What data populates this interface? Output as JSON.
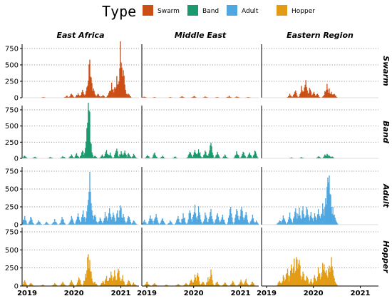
{
  "legend": {
    "title": "Type",
    "items": [
      {
        "label": "Swarm",
        "color": "#cc4e14"
      },
      {
        "label": "Band",
        "color": "#1a9a6c"
      },
      {
        "label": "Adult",
        "color": "#4ea7e0"
      },
      {
        "label": "Hopper",
        "color": "#e29b14"
      }
    ]
  },
  "chart_data": {
    "type": "bar",
    "facet_columns": [
      "East Africa",
      "Middle East",
      "Eastern Region"
    ],
    "facet_rows": [
      "Swarm",
      "Band",
      "Adult",
      "Hopper"
    ],
    "x_ticks": [
      "2019",
      "2020",
      "2021"
    ],
    "xlim": [
      "2019-01-01",
      "2021-06-30"
    ],
    "y_ticks": [
      0,
      250,
      500,
      750
    ],
    "ylim": [
      0,
      880
    ],
    "grid": "horizontal dotted",
    "legend_position": "top",
    "panels": {
      "East Africa": {
        "Swarm": {
          "peaks": [
            [
              "2019-06-15",
              10
            ],
            [
              "2019-12-15",
              30
            ],
            [
              "2020-01-20",
              60
            ],
            [
              "2020-03-10",
              70
            ],
            [
              "2020-04-15",
              120
            ],
            [
              "2020-05-20",
              160
            ],
            [
              "2020-06-10",
              580
            ],
            [
              "2020-06-20",
              310
            ],
            [
              "2020-07-10",
              140
            ],
            [
              "2020-08-15",
              60
            ],
            [
              "2020-09-20",
              40
            ],
            [
              "2020-11-10",
              100
            ],
            [
              "2020-12-01",
              230
            ],
            [
              "2020-12-20",
              160
            ],
            [
              "2021-01-10",
              330
            ],
            [
              "2021-01-25",
              250
            ],
            [
              "2021-02-05",
              860
            ],
            [
              "2021-02-15",
              460
            ],
            [
              "2021-03-01",
              420
            ],
            [
              "2021-03-15",
              120
            ],
            [
              "2021-04-10",
              60
            ]
          ]
        },
        "Band": {
          "peaks": [
            [
              "2019-01-20",
              40
            ],
            [
              "2019-04-10",
              25
            ],
            [
              "2019-08-10",
              20
            ],
            [
              "2019-11-15",
              35
            ],
            [
              "2020-01-20",
              60
            ],
            [
              "2020-03-01",
              80
            ],
            [
              "2020-04-15",
              120
            ],
            [
              "2020-05-10",
              160
            ],
            [
              "2020-05-25",
              550
            ],
            [
              "2020-06-01",
              860
            ],
            [
              "2020-06-08",
              720
            ],
            [
              "2020-06-15",
              250
            ],
            [
              "2020-07-20",
              40
            ],
            [
              "2020-09-15",
              60
            ],
            [
              "2020-10-20",
              130
            ],
            [
              "2020-11-15",
              90
            ],
            [
              "2021-01-05",
              150
            ],
            [
              "2021-02-10",
              110
            ],
            [
              "2021-03-10",
              120
            ],
            [
              "2021-04-10",
              80
            ],
            [
              "2021-05-20",
              70
            ]
          ]
        },
        "Adult": {
          "peaks": [
            [
              "2019-01-20",
              120
            ],
            [
              "2019-03-10",
              110
            ],
            [
              "2019-05-10",
              60
            ],
            [
              "2019-07-10",
              40
            ],
            [
              "2019-09-10",
              80
            ],
            [
              "2019-11-10",
              110
            ],
            [
              "2020-01-20",
              120
            ],
            [
              "2020-03-10",
              160
            ],
            [
              "2020-04-20",
              200
            ],
            [
              "2020-05-30",
              350
            ],
            [
              "2020-06-08",
              740
            ],
            [
              "2020-06-20",
              300
            ],
            [
              "2020-07-20",
              140
            ],
            [
              "2020-08-30",
              100
            ],
            [
              "2020-10-10",
              180
            ],
            [
              "2020-11-10",
              230
            ],
            [
              "2020-12-10",
              170
            ],
            [
              "2021-01-15",
              200
            ],
            [
              "2021-02-05",
              270
            ],
            [
              "2021-03-01",
              150
            ],
            [
              "2021-04-10",
              120
            ],
            [
              "2021-05-20",
              60
            ]
          ]
        },
        "Hopper": {
          "peaks": [
            [
              "2019-01-20",
              80
            ],
            [
              "2019-03-10",
              40
            ],
            [
              "2019-06-10",
              20
            ],
            [
              "2019-09-10",
              40
            ],
            [
              "2019-11-15",
              60
            ],
            [
              "2020-01-20",
              80
            ],
            [
              "2020-03-20",
              120
            ],
            [
              "2020-05-10",
              170
            ],
            [
              "2020-05-28",
              440
            ],
            [
              "2020-06-08",
              360
            ],
            [
              "2020-06-20",
              200
            ],
            [
              "2020-07-20",
              60
            ],
            [
              "2020-09-20",
              70
            ],
            [
              "2020-10-20",
              140
            ],
            [
              "2020-11-20",
              200
            ],
            [
              "2020-12-20",
              220
            ],
            [
              "2021-01-20",
              240
            ],
            [
              "2021-02-20",
              150
            ],
            [
              "2021-04-10",
              80
            ],
            [
              "2021-05-20",
              50
            ]
          ]
        }
      },
      "Middle East": {
        "Swarm": {
          "peaks": [
            [
              "2019-01-20",
              15
            ],
            [
              "2019-04-10",
              10
            ],
            [
              "2019-08-10",
              10
            ],
            [
              "2019-11-10",
              20
            ],
            [
              "2020-02-10",
              25
            ],
            [
              "2020-05-10",
              20
            ],
            [
              "2020-08-10",
              10
            ],
            [
              "2020-11-10",
              30
            ],
            [
              "2021-01-10",
              20
            ],
            [
              "2021-04-10",
              10
            ]
          ]
        },
        "Band": {
          "peaks": [
            [
              "2019-02-15",
              50
            ],
            [
              "2019-04-10",
              90
            ],
            [
              "2019-06-10",
              40
            ],
            [
              "2019-09-15",
              30
            ],
            [
              "2020-01-10",
              100
            ],
            [
              "2020-02-20",
              130
            ],
            [
              "2020-03-20",
              140
            ],
            [
              "2020-05-10",
              120
            ],
            [
              "2020-06-20",
              240
            ],
            [
              "2020-08-10",
              100
            ],
            [
              "2020-10-10",
              60
            ],
            [
              "2021-01-10",
              110
            ],
            [
              "2021-03-01",
              100
            ],
            [
              "2021-04-20",
              90
            ],
            [
              "2021-06-01",
              120
            ]
          ]
        },
        "Adult": {
          "peaks": [
            [
              "2019-01-20",
              70
            ],
            [
              "2019-03-10",
              130
            ],
            [
              "2019-04-20",
              150
            ],
            [
              "2019-06-10",
              90
            ],
            [
              "2019-08-10",
              60
            ],
            [
              "2019-10-10",
              120
            ],
            [
              "2019-11-20",
              160
            ],
            [
              "2020-01-10",
              200
            ],
            [
              "2020-02-15",
              280
            ],
            [
              "2020-03-20",
              260
            ],
            [
              "2020-05-10",
              170
            ],
            [
              "2020-06-20",
              220
            ],
            [
              "2020-08-10",
              160
            ],
            [
              "2020-09-20",
              140
            ],
            [
              "2020-11-20",
              250
            ],
            [
              "2021-01-10",
              220
            ],
            [
              "2021-02-15",
              250
            ],
            [
              "2021-03-20",
              180
            ],
            [
              "2021-05-10",
              140
            ],
            [
              "2021-06-10",
              60
            ]
          ]
        },
        "Hopper": {
          "peaks": [
            [
              "2019-02-10",
              60
            ],
            [
              "2019-04-10",
              40
            ],
            [
              "2019-07-10",
              20
            ],
            [
              "2019-10-10",
              30
            ],
            [
              "2019-12-10",
              40
            ],
            [
              "2020-01-20",
              90
            ],
            [
              "2020-02-20",
              160
            ],
            [
              "2020-03-10",
              180
            ],
            [
              "2020-04-20",
              60
            ],
            [
              "2020-06-01",
              120
            ],
            [
              "2020-06-20",
              230
            ],
            [
              "2020-08-10",
              60
            ],
            [
              "2020-10-10",
              50
            ],
            [
              "2020-12-10",
              70
            ],
            [
              "2021-02-10",
              90
            ],
            [
              "2021-03-20",
              100
            ],
            [
              "2021-05-10",
              60
            ]
          ]
        }
      },
      "Eastern Region": {
        "Swarm": {
          "peaks": [
            [
              "2019-08-10",
              60
            ],
            [
              "2019-09-20",
              110
            ],
            [
              "2019-11-10",
              180
            ],
            [
              "2019-12-10",
              270
            ],
            [
              "2020-01-10",
              150
            ],
            [
              "2020-02-10",
              90
            ],
            [
              "2020-03-10",
              60
            ],
            [
              "2020-05-10",
              100
            ],
            [
              "2020-05-25",
              210
            ],
            [
              "2020-06-10",
              140
            ],
            [
              "2020-06-30",
              90
            ],
            [
              "2020-07-20",
              60
            ]
          ]
        },
        "Band": {
          "peaks": [
            [
              "2019-08-20",
              15
            ],
            [
              "2019-11-10",
              20
            ],
            [
              "2020-03-20",
              30
            ],
            [
              "2020-05-10",
              60
            ],
            [
              "2020-05-25",
              70
            ],
            [
              "2020-06-10",
              45
            ],
            [
              "2020-07-01",
              30
            ]
          ]
        },
        "Adult": {
          "peaks": [
            [
              "2019-05-20",
              60
            ],
            [
              "2019-06-20",
              130
            ],
            [
              "2019-08-10",
              170
            ],
            [
              "2019-09-20",
              230
            ],
            [
              "2019-10-20",
              240
            ],
            [
              "2019-11-20",
              260
            ],
            [
              "2019-12-20",
              250
            ],
            [
              "2020-01-20",
              180
            ],
            [
              "2020-02-20",
              160
            ],
            [
              "2020-03-20",
              220
            ],
            [
              "2020-04-20",
              300
            ],
            [
              "2020-05-15",
              370
            ],
            [
              "2020-05-28",
              660
            ],
            [
              "2020-06-08",
              690
            ],
            [
              "2020-06-20",
              420
            ],
            [
              "2020-07-10",
              250
            ],
            [
              "2020-07-25",
              100
            ]
          ]
        },
        "Hopper": {
          "peaks": [
            [
              "2019-05-20",
              70
            ],
            [
              "2019-06-20",
              150
            ],
            [
              "2019-07-20",
              240
            ],
            [
              "2019-08-20",
              300
            ],
            [
              "2019-09-10",
              380
            ],
            [
              "2019-10-01",
              400
            ],
            [
              "2019-10-20",
              360
            ],
            [
              "2019-11-20",
              200
            ],
            [
              "2019-12-20",
              140
            ],
            [
              "2020-01-20",
              100
            ],
            [
              "2020-02-20",
              150
            ],
            [
              "2020-03-20",
              260
            ],
            [
              "2020-04-20",
              320
            ],
            [
              "2020-05-01",
              300
            ],
            [
              "2020-05-20",
              220
            ],
            [
              "2020-06-10",
              280
            ],
            [
              "2020-06-25",
              400
            ],
            [
              "2020-07-10",
              220
            ],
            [
              "2020-07-25",
              60
            ]
          ]
        }
      }
    }
  }
}
